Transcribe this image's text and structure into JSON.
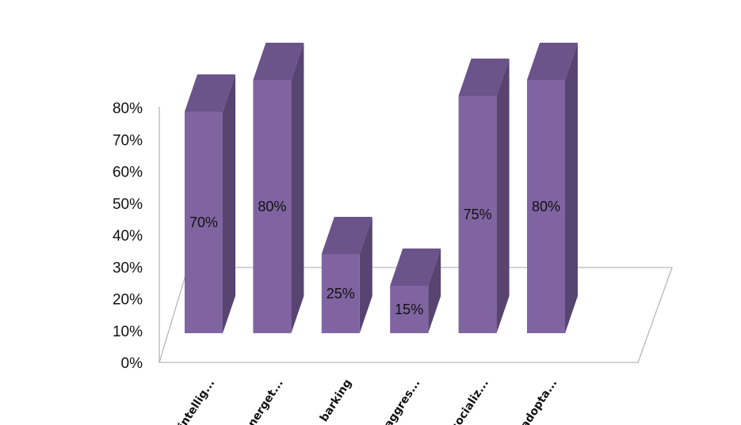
{
  "chart_data": {
    "type": "bar",
    "style": "3d-column",
    "categories": [
      "intellig...",
      "energet...",
      "barking",
      "aggres...",
      "socializ...",
      "adopta..."
    ],
    "values": [
      0.7,
      0.8,
      0.25,
      0.15,
      0.75,
      0.8
    ],
    "data_labels": [
      "70%",
      "80%",
      "25%",
      "15%",
      "75%",
      "80%"
    ],
    "y_ticks": [
      "0%",
      "10%",
      "20%",
      "30%",
      "40%",
      "50%",
      "60%",
      "70%",
      "80%"
    ],
    "ylim": [
      0,
      0.8
    ],
    "title": "",
    "xlabel": "",
    "ylabel": "",
    "grid": false,
    "legend": "none",
    "colors": {
      "bar_front": "#8064a2",
      "bar_top": "#6a548a",
      "bar_side": "#574471",
      "floor": "#b8b8b8"
    }
  }
}
